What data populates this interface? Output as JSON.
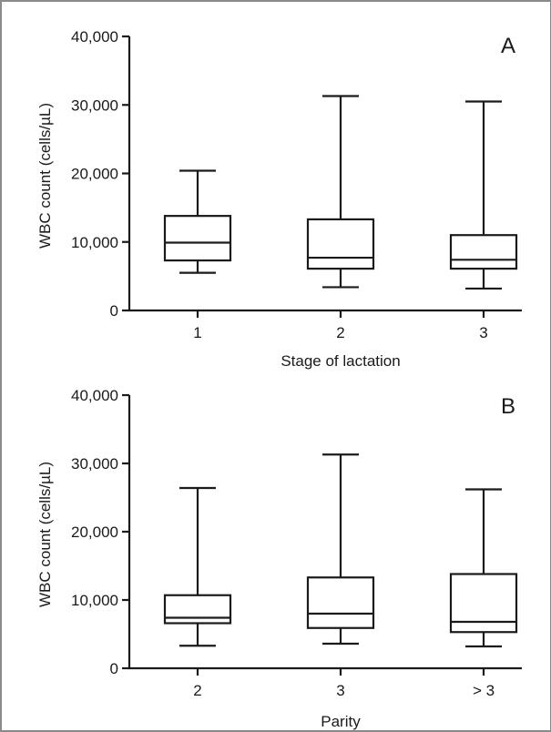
{
  "chart_data": [
    {
      "type": "box",
      "panel_label": "A",
      "xlabel": "Stage of lactation",
      "ylabel": "WBC count (cells/µL)",
      "ylim": [
        0,
        40000
      ],
      "yticks": [
        "0",
        "10,000",
        "20,000",
        "30,000",
        "40,000"
      ],
      "categories": [
        "1",
        "2",
        "3"
      ],
      "boxes": [
        {
          "min": 5500,
          "q1": 7300,
          "median": 9900,
          "q3": 13800,
          "max": 20400
        },
        {
          "min": 3400,
          "q1": 6100,
          "median": 7700,
          "q3": 13300,
          "max": 31300
        },
        {
          "min": 3200,
          "q1": 6100,
          "median": 7400,
          "q3": 11000,
          "max": 30500
        }
      ]
    },
    {
      "type": "box",
      "panel_label": "B",
      "xlabel": "Parity",
      "ylabel": "WBC count (cells/µL)",
      "ylim": [
        0,
        40000
      ],
      "yticks": [
        "0",
        "10,000",
        "20,000",
        "30,000",
        "40,000"
      ],
      "categories": [
        "2",
        "3",
        "> 3"
      ],
      "boxes": [
        {
          "min": 3300,
          "q1": 6600,
          "median": 7400,
          "q3": 10700,
          "max": 26400
        },
        {
          "min": 3600,
          "q1": 5900,
          "median": 8000,
          "q3": 13300,
          "max": 31300
        },
        {
          "min": 3200,
          "q1": 5300,
          "median": 6800,
          "q3": 13800,
          "max": 26200
        }
      ]
    }
  ]
}
